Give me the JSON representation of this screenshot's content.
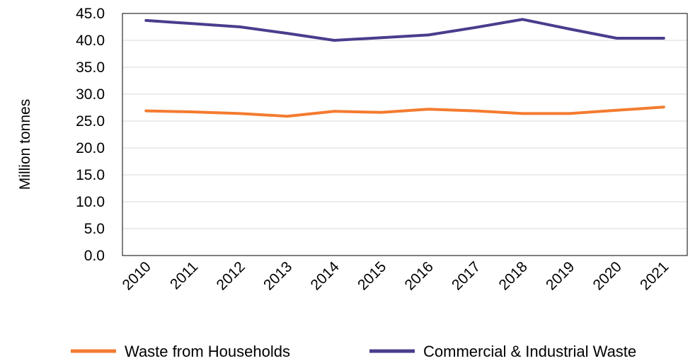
{
  "chart_data": {
    "type": "line",
    "title": "",
    "xlabel": "",
    "ylabel": "Million tonnes",
    "ylim": [
      0,
      45
    ],
    "y_ticks": [
      "0.0",
      "5.0",
      "10.0",
      "15.0",
      "20.0",
      "25.0",
      "30.0",
      "35.0",
      "40.0",
      "45.0"
    ],
    "categories": [
      "2010",
      "2011",
      "2012",
      "2013",
      "2014",
      "2015",
      "2016",
      "2017",
      "2018",
      "2019",
      "2020",
      "2021"
    ],
    "grid": "horizontal",
    "legend_position": "bottom",
    "series": [
      {
        "name": "Waste from Households",
        "color": "#F47B30",
        "values": [
          26.9,
          26.7,
          26.4,
          25.9,
          26.8,
          26.6,
          27.2,
          26.9,
          26.4,
          26.4,
          27.0,
          27.6
        ]
      },
      {
        "name": "Commercial & Industrial Waste",
        "color": "#4B3C8E",
        "values": [
          43.7,
          43.1,
          42.5,
          41.3,
          40.0,
          40.5,
          41.0,
          42.4,
          43.9,
          42.1,
          40.4,
          40.4
        ]
      }
    ]
  }
}
